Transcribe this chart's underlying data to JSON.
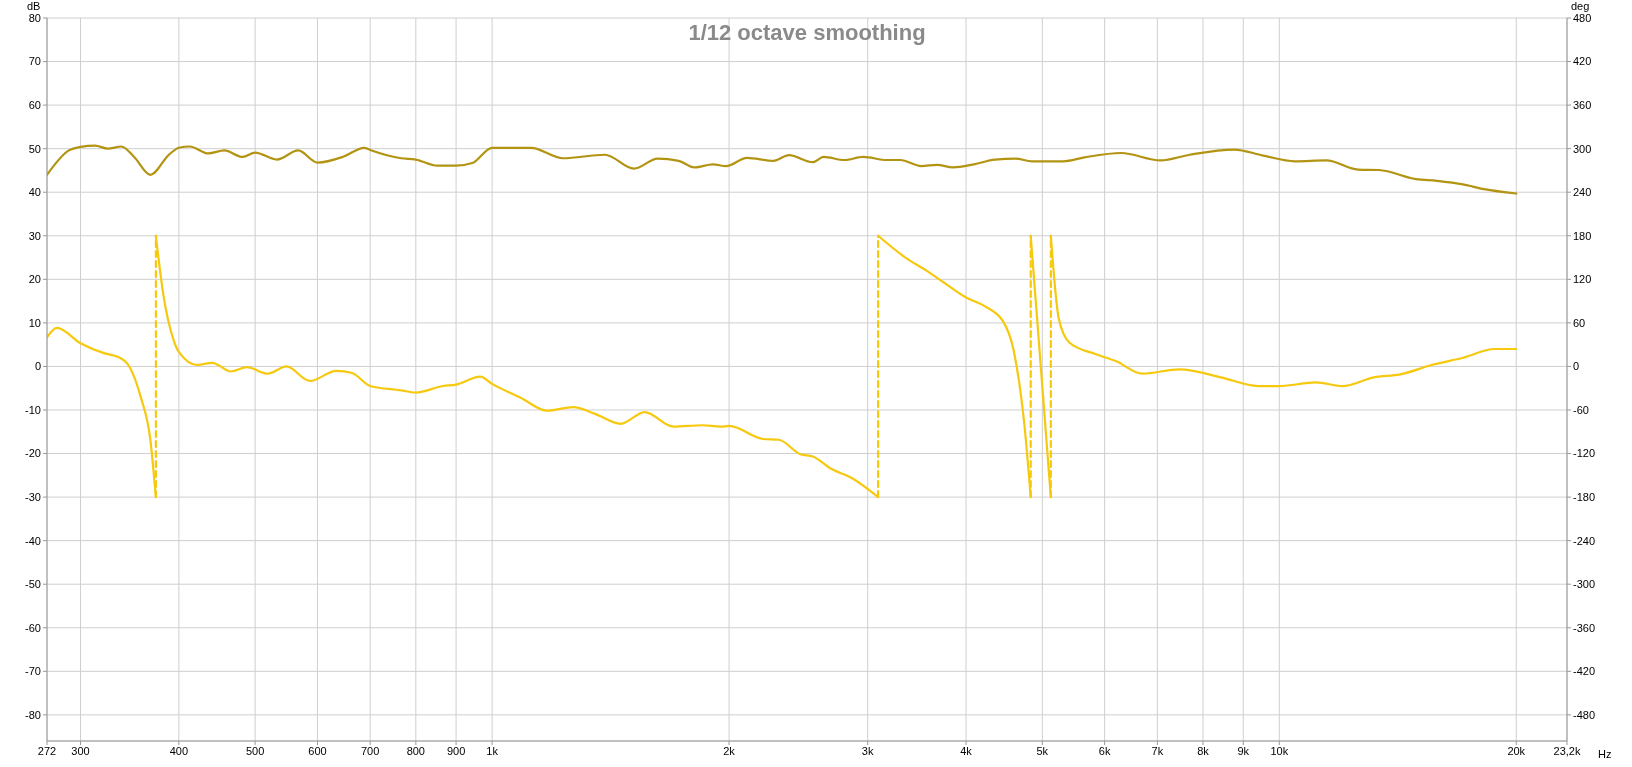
{
  "chart_data": {
    "type": "line",
    "title": "1/12 octave smoothing",
    "xlabel": "Hz",
    "ylabel": "dB",
    "y2label": "deg",
    "log": "x",
    "grid": true,
    "marker": "none",
    "line_style": "solid",
    "xlim": [
      272,
      23200
    ],
    "xticks": [
      272,
      300,
      400,
      500,
      600,
      700,
      800,
      900,
      {
        "value": 1000,
        "label": "1k"
      },
      {
        "value": 2000,
        "label": "2k"
      },
      {
        "value": 3000,
        "label": "3k"
      },
      {
        "value": 4000,
        "label": "4k"
      },
      {
        "value": 5000,
        "label": "5k"
      },
      {
        "value": 6000,
        "label": "6k"
      },
      {
        "value": 7000,
        "label": "7k"
      },
      {
        "value": 8000,
        "label": "8k"
      },
      {
        "value": 9000,
        "label": "9k"
      },
      {
        "value": 10000,
        "label": "10k"
      },
      {
        "value": 20000,
        "label": "20k"
      },
      {
        "value": 23200,
        "label": "23,2k"
      }
    ],
    "ylim": [
      -86,
      80
    ],
    "yticks": [
      -80,
      -70,
      -60,
      -50,
      -40,
      -30,
      -20,
      -10,
      0,
      10,
      20,
      30,
      40,
      50,
      60,
      70,
      80
    ],
    "y2lim": [
      -516,
      480
    ],
    "y2ticks": [
      -480,
      -420,
      -360,
      -300,
      -240,
      -180,
      -120,
      -60,
      0,
      60,
      120,
      180,
      240,
      300,
      360,
      420,
      480
    ],
    "series": [
      {
        "color": "#b39412",
        "x": [
          272,
          290,
          300,
          313,
          325,
          338,
          351,
          368,
          389,
          400,
          413,
          436,
          457,
          482,
          500,
          533,
          567,
          600,
          646,
          688,
          700,
          766,
          800,
          852,
          900,
          944,
          1000,
          1121,
          1230,
          1391,
          1514,
          1623,
          1726,
          1807,
          1908,
          1982,
          2108,
          2276,
          2383,
          2555,
          2637,
          2803,
          2961,
          3173,
          3300,
          3509,
          3675,
          3849,
          4094,
          4353,
          4628,
          4849,
          5317,
          5654,
          6296,
          7066,
          7693,
          8763,
          9545,
          10465,
          11479,
          12595,
          13388,
          14913,
          15860,
          17122,
          18204,
          20000
        ],
        "values": [
          44,
          49.6,
          50.4,
          50.7,
          50,
          50.5,
          48.1,
          44,
          48.7,
          50.2,
          50.5,
          48.9,
          49.6,
          48.1,
          49.1,
          47.5,
          49.6,
          46.8,
          48.1,
          50.2,
          49.7,
          47.8,
          47.5,
          46.1,
          46.1,
          46.7,
          50.2,
          50.2,
          47.8,
          48.6,
          45.4,
          47.7,
          47.2,
          45.7,
          46.4,
          46,
          47.9,
          47.2,
          48.5,
          46.9,
          48.1,
          47.4,
          48.1,
          47.4,
          47.4,
          46,
          46.3,
          45.7,
          46.4,
          47.5,
          47.7,
          47.1,
          47.1,
          48,
          49,
          47.3,
          48.6,
          49.8,
          48.4,
          47.1,
          47.3,
          45.2,
          45.1,
          43,
          42.6,
          41.8,
          40.7,
          39.7
        ]
      },
      {
        "color": "#f6c90e",
        "axis": "y2",
        "x": [
          272,
          280,
          300,
          322,
          335,
          346,
          358,
          368,
          374
        ],
        "values": [
          40,
          53,
          32,
          18,
          13,
          0,
          -43,
          -101,
          -180
        ]
      },
      {
        "color": "#f6c90e",
        "axis": "y2",
        "x": [
          374,
          382,
          394,
          400,
          422,
          441,
          466,
          488,
          519,
          548,
          587,
          634,
          664,
          700,
          766,
          800,
          866,
          900,
          966,
          1000,
          1087,
          1174,
          1268,
          1349,
          1457,
          1562,
          1700,
          1850,
          1953,
          2000,
          2210,
          2314,
          2464,
          2555,
          2696,
          2867,
          3093
        ],
        "values": [
          180,
          101,
          36,
          20,
          2,
          5,
          -7,
          -1,
          -10,
          0,
          -20,
          -6,
          -9,
          -27,
          -33,
          -36,
          -27,
          -25,
          -14,
          -24,
          -43,
          -61,
          -56,
          -65,
          -79,
          -63,
          -83,
          -81,
          -83,
          -82,
          -100,
          -101,
          -121,
          -124,
          -141,
          -154,
          -180
        ]
      },
      {
        "color": "#f6c90e",
        "axis": "y2",
        "x": [
          3093,
          3350,
          3563,
          3789,
          4000,
          4224,
          4458,
          4598,
          4745,
          4833
        ],
        "values": [
          180,
          150,
          132,
          112,
          95,
          83,
          62,
          22,
          -81,
          -180
        ]
      },
      {
        "color": "#f6c90e",
        "axis": "y2",
        "x": [
          4833,
          5126
        ],
        "values": [
          180,
          -180
        ]
      },
      {
        "color": "#f6c90e",
        "axis": "y2",
        "x": [
          5126,
          5246,
          5410,
          5840,
          6207,
          6701,
          7464,
          8431,
          9400,
          10000,
          11132,
          12025,
          13186,
          14239,
          15614,
          17122,
          18772,
          20000
        ],
        "values": [
          180,
          66,
          33,
          17,
          7,
          -10,
          -4,
          -15,
          -27,
          -27,
          -22,
          -27,
          -15,
          -11,
          2,
          12,
          24,
          24
        ]
      },
      {
        "type": "line",
        "line_style": "dashed",
        "color": "#f6c90e",
        "axis": "y2",
        "x": [
          374,
          374
        ],
        "values": [
          -180,
          180
        ]
      },
      {
        "type": "line",
        "line_style": "dashed",
        "color": "#f6c90e",
        "axis": "y2",
        "x": [
          3093,
          3093
        ],
        "values": [
          -180,
          180
        ]
      },
      {
        "type": "line",
        "line_style": "dashed",
        "color": "#f6c90e",
        "axis": "y2",
        "x": [
          4833,
          4833
        ],
        "values": [
          -180,
          180
        ]
      },
      {
        "type": "line",
        "line_style": "dashed",
        "color": "#f6c90e",
        "axis": "y2",
        "x": [
          5126,
          5126
        ],
        "values": [
          -180,
          180
        ]
      }
    ]
  }
}
